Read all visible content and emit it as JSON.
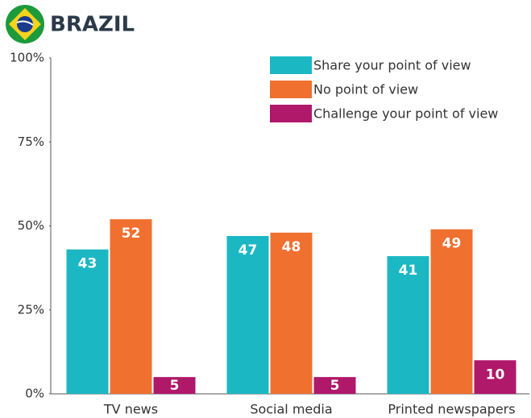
{
  "chart_data": {
    "type": "bar",
    "title": "BRAZIL",
    "categories": [
      "TV news",
      "Social media",
      "Printed newspapers"
    ],
    "series": [
      {
        "name": "Share your point of view",
        "color": "#1bb8c4",
        "values": [
          43,
          47,
          41
        ]
      },
      {
        "name": "No point of view",
        "color": "#f07030",
        "values": [
          52,
          48,
          49
        ]
      },
      {
        "name": "Challenge your point of view",
        "color": "#b0186a",
        "values": [
          5,
          5,
          10
        ]
      }
    ],
    "ylim": [
      0,
      100
    ],
    "yticks": [
      {
        "value": 0,
        "label": "0%"
      },
      {
        "value": 25,
        "label": "25%"
      },
      {
        "value": 50,
        "label": "50%"
      },
      {
        "value": 75,
        "label": "75%"
      },
      {
        "value": 100,
        "label": "100%"
      }
    ],
    "grid": false,
    "legend": "top-right"
  }
}
